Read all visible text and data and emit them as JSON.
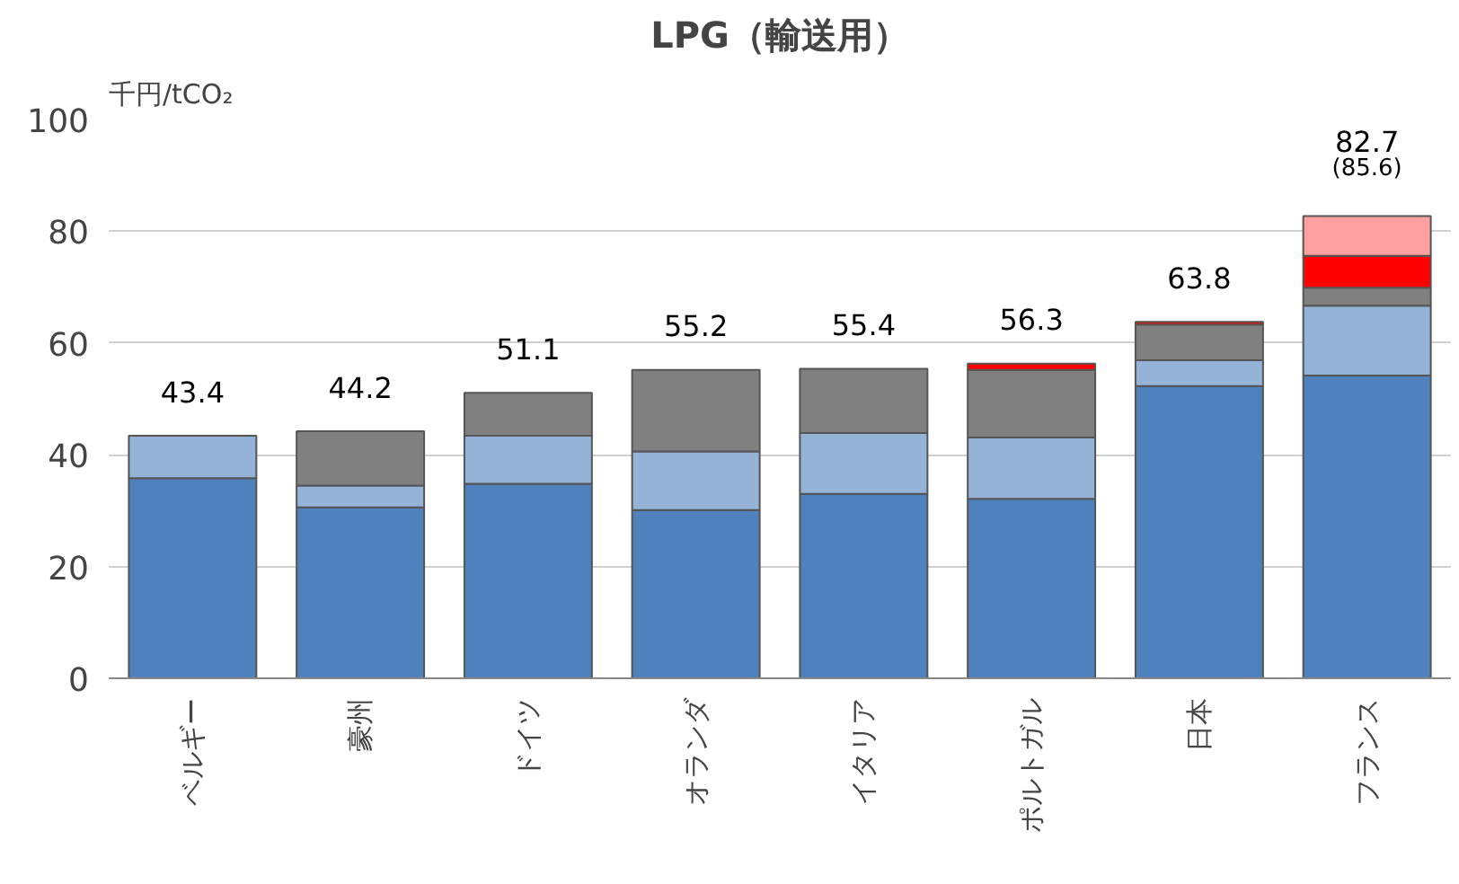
{
  "chart_data": {
    "type": "bar",
    "title": "LPG（輸送用）",
    "ylabel": "千円/tCO₂",
    "categories": [
      "ベルギー",
      "豪州",
      "ドイツ",
      "オランダ",
      "イタリア",
      "ポルトガル",
      "日本",
      "フランス"
    ],
    "stacked": true,
    "series": [
      {
        "color": "#4f81bd",
        "values": [
          35.8,
          30.6,
          34.8,
          30.1,
          33.0,
          32.1,
          52.3,
          54.2
        ]
      },
      {
        "color": "#95b3d7",
        "values": [
          7.6,
          3.9,
          8.6,
          10.5,
          10.9,
          11.0,
          4.6,
          12.5
        ]
      },
      {
        "color": "#808080",
        "values": [
          null,
          9.7,
          7.7,
          14.6,
          11.5,
          12.1,
          6.4,
          3.2
        ]
      },
      {
        "color": "#ff0000",
        "values": [
          null,
          null,
          null,
          null,
          null,
          1.1,
          0.5,
          5.7
        ]
      },
      {
        "color": "#ffa0a0",
        "values": [
          null,
          null,
          null,
          null,
          null,
          null,
          null,
          7.1
        ]
      }
    ],
    "totals": [
      "43.4",
      "44.2",
      "51.1",
      "55.2",
      "55.4",
      "56.3",
      "63.8",
      "82.7\n(85.6)"
    ],
    "ylim": [
      0,
      100
    ],
    "yticks": [
      0,
      20,
      40,
      60,
      80,
      100
    ],
    "grid": "y"
  }
}
